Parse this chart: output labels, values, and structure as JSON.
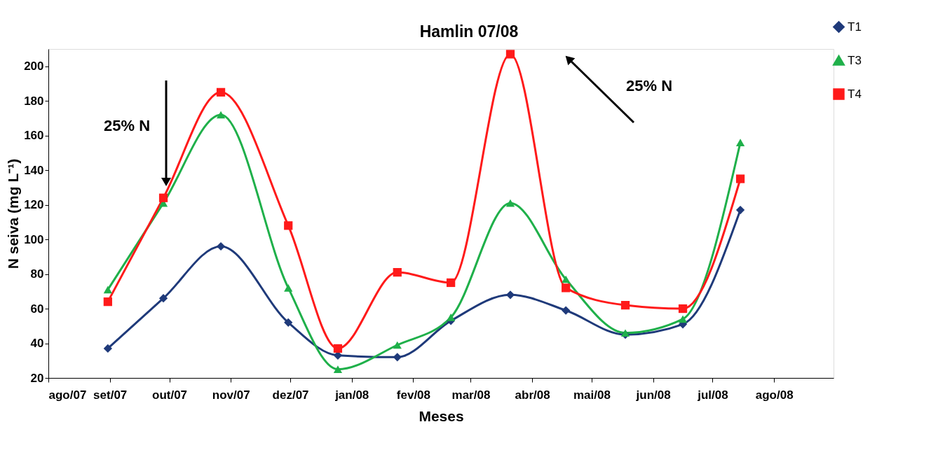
{
  "chart_data": {
    "type": "line",
    "title": "Hamlin 07/08",
    "xlabel": "Meses",
    "ylabel": "N seiva (mg L⁻¹)",
    "x": [
      "2007-08-31",
      "2007-09-28",
      "2007-10-27",
      "2007-11-30",
      "2007-12-25",
      "2008-01-24",
      "2008-02-20",
      "2008-03-21",
      "2008-04-18",
      "2008-05-18",
      "2008-06-16",
      "2008-07-15"
    ],
    "series": [
      {
        "name": "T1",
        "color": "#1f3a7a",
        "marker": "diamond",
        "values": [
          37,
          66,
          96,
          52,
          33,
          32,
          53,
          68,
          59,
          45,
          51,
          117
        ]
      },
      {
        "name": "T3",
        "color": "#1fb04a",
        "marker": "triangle",
        "values": [
          71,
          121,
          172,
          72,
          25,
          39,
          55,
          121,
          77,
          46,
          54,
          156
        ]
      },
      {
        "name": "T4",
        "color": "#ff1a1a",
        "marker": "square",
        "values": [
          64,
          124,
          185,
          108,
          37,
          81,
          75,
          207,
          72,
          62,
          60,
          135
        ]
      }
    ],
    "xlim": [
      "2007-08-01",
      "2008-08-31"
    ],
    "xticks": [
      {
        "value": "2007-08-01",
        "label": "ago/07"
      },
      {
        "value": "2007-09-01",
        "label": "set/07"
      },
      {
        "value": "2007-10-01",
        "label": "out/07"
      },
      {
        "value": "2007-11-01",
        "label": "nov/07"
      },
      {
        "value": "2007-12-01",
        "label": "dez/07"
      },
      {
        "value": "2008-01-01",
        "label": "jan/08"
      },
      {
        "value": "2008-02-01",
        "label": "fev/08"
      },
      {
        "value": "2008-03-01",
        "label": "mar/08"
      },
      {
        "value": "2008-04-01",
        "label": "abr/08"
      },
      {
        "value": "2008-05-01",
        "label": "mai/08"
      },
      {
        "value": "2008-06-01",
        "label": "jun/08"
      },
      {
        "value": "2008-07-01",
        "label": "jul/08"
      },
      {
        "value": "2008-08-01",
        "label": "ago/08"
      }
    ],
    "ylim": [
      20,
      210
    ],
    "yticks": [
      20,
      40,
      60,
      80,
      100,
      120,
      140,
      160,
      180,
      200
    ],
    "grid": false,
    "legend": "top right",
    "line_style": "solid",
    "annotations": [
      "25% N",
      "25% N"
    ]
  }
}
